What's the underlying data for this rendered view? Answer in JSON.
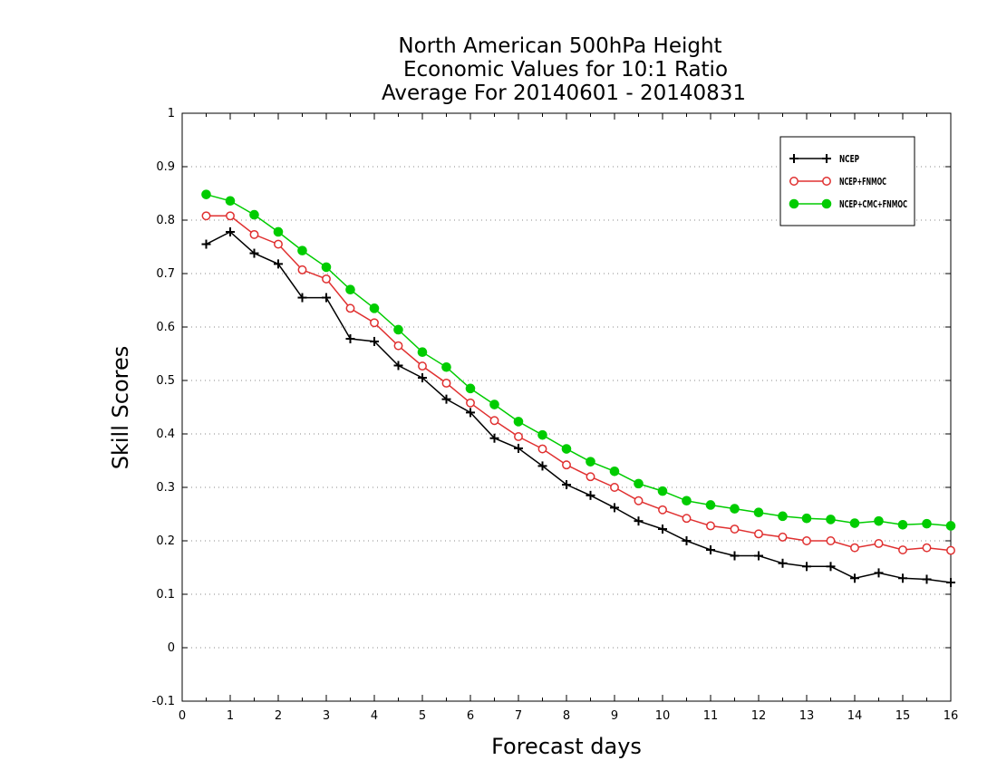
{
  "chart_data": {
    "type": "line",
    "title_lines": [
      "North American 500hPa Height",
      "Economic Values for 10:1 Ratio",
      "Average For 20140601 - 20140831"
    ],
    "xlabel": "Forecast days",
    "ylabel": "Skill Scores",
    "xlim": [
      0,
      16
    ],
    "ylim": [
      -0.1,
      1
    ],
    "xticks": [
      "0",
      "1",
      "2",
      "3",
      "4",
      "5",
      "6",
      "7",
      "8",
      "9",
      "10",
      "11",
      "12",
      "13",
      "14",
      "15",
      "16"
    ],
    "yticks": [
      "-0.1",
      "0",
      "0.1",
      "0.2",
      "0.3",
      "0.4",
      "0.5",
      "0.6",
      "0.7",
      "0.8",
      "0.9",
      "1"
    ],
    "grid": "horizontal dotted",
    "legend_position": "top-right",
    "x": [
      0.5,
      1,
      1.5,
      2,
      2.5,
      3,
      3.5,
      4,
      4.5,
      5,
      5.5,
      6,
      6.5,
      7,
      7.5,
      8,
      8.5,
      9,
      9.5,
      10,
      10.5,
      11,
      11.5,
      12,
      12.5,
      13,
      13.5,
      14,
      14.5,
      15,
      15.5,
      16
    ],
    "series": [
      {
        "name": "NCEP",
        "color": "#000000",
        "marker": "plus",
        "values": [
          0.755,
          0.778,
          0.738,
          0.718,
          0.655,
          0.655,
          0.578,
          0.573,
          0.528,
          0.505,
          0.465,
          0.44,
          0.392,
          0.373,
          0.34,
          0.305,
          0.285,
          0.262,
          0.237,
          0.222,
          0.2,
          0.183,
          0.172,
          0.172,
          0.158,
          0.152,
          0.152,
          0.13,
          0.14,
          0.13,
          0.128,
          0.122
        ]
      },
      {
        "name": "NCEP+FNMOC",
        "color": "#e03030",
        "marker": "open-circle",
        "values": [
          0.808,
          0.808,
          0.773,
          0.755,
          0.707,
          0.69,
          0.635,
          0.608,
          0.565,
          0.527,
          0.495,
          0.458,
          0.425,
          0.395,
          0.372,
          0.342,
          0.32,
          0.3,
          0.275,
          0.258,
          0.242,
          0.228,
          0.222,
          0.213,
          0.207,
          0.2,
          0.2,
          0.187,
          0.195,
          0.183,
          0.187,
          0.182
        ]
      },
      {
        "name": "NCEP+CMC+FNMOC",
        "color": "#00cc00",
        "marker": "filled-circle",
        "values": [
          0.848,
          0.836,
          0.81,
          0.778,
          0.743,
          0.712,
          0.67,
          0.635,
          0.595,
          0.553,
          0.525,
          0.485,
          0.455,
          0.423,
          0.398,
          0.372,
          0.348,
          0.33,
          0.307,
          0.293,
          0.275,
          0.267,
          0.26,
          0.253,
          0.246,
          0.242,
          0.24,
          0.233,
          0.237,
          0.23,
          0.232,
          0.228
        ]
      }
    ]
  }
}
